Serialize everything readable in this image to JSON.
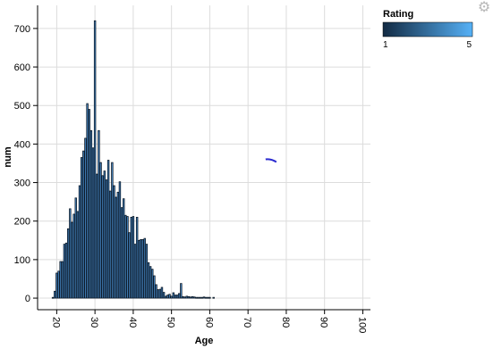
{
  "chart_data": {
    "type": "bar",
    "xlabel": "Age",
    "ylabel": "num",
    "xlim": [
      15,
      102
    ],
    "ylim": [
      -30,
      760
    ],
    "x_ticks": [
      20,
      30,
      40,
      50,
      60,
      70,
      80,
      90,
      100
    ],
    "y_ticks": [
      0,
      100,
      200,
      300,
      400,
      500,
      600,
      700
    ],
    "grid": true,
    "bar_color": "#4a8fd0",
    "bar_stroke": "#0c1826",
    "legend": {
      "title": "Rating",
      "min_label": "1",
      "max_label": "5",
      "gradient": [
        "#132b43",
        "#56b1f7"
      ],
      "placement": "top-right"
    },
    "values": [
      {
        "x": 19,
        "y": 2
      },
      {
        "x": 19.5,
        "y": 18
      },
      {
        "x": 20,
        "y": 65
      },
      {
        "x": 20.5,
        "y": 70
      },
      {
        "x": 21,
        "y": 95
      },
      {
        "x": 21.5,
        "y": 95
      },
      {
        "x": 22,
        "y": 140
      },
      {
        "x": 22.5,
        "y": 143
      },
      {
        "x": 23,
        "y": 180
      },
      {
        "x": 23.5,
        "y": 232
      },
      {
        "x": 24,
        "y": 197
      },
      {
        "x": 24.5,
        "y": 218
      },
      {
        "x": 25,
        "y": 260
      },
      {
        "x": 25.5,
        "y": 225
      },
      {
        "x": 26,
        "y": 292
      },
      {
        "x": 26.5,
        "y": 365
      },
      {
        "x": 27,
        "y": 382
      },
      {
        "x": 27.5,
        "y": 415
      },
      {
        "x": 28,
        "y": 505
      },
      {
        "x": 28.5,
        "y": 490
      },
      {
        "x": 29,
        "y": 435
      },
      {
        "x": 29.5,
        "y": 390
      },
      {
        "x": 30,
        "y": 720
      },
      {
        "x": 30.5,
        "y": 322
      },
      {
        "x": 31,
        "y": 435
      },
      {
        "x": 31.5,
        "y": 352
      },
      {
        "x": 32,
        "y": 318
      },
      {
        "x": 32.5,
        "y": 330
      },
      {
        "x": 33,
        "y": 307
      },
      {
        "x": 33.5,
        "y": 358
      },
      {
        "x": 34,
        "y": 278
      },
      {
        "x": 34.5,
        "y": 352
      },
      {
        "x": 35,
        "y": 292
      },
      {
        "x": 35.5,
        "y": 262
      },
      {
        "x": 36,
        "y": 275
      },
      {
        "x": 36.5,
        "y": 302
      },
      {
        "x": 37,
        "y": 235
      },
      {
        "x": 37.5,
        "y": 258
      },
      {
        "x": 38,
        "y": 215
      },
      {
        "x": 38.5,
        "y": 212
      },
      {
        "x": 39,
        "y": 170
      },
      {
        "x": 39.5,
        "y": 210
      },
      {
        "x": 40,
        "y": 212
      },
      {
        "x": 40.5,
        "y": 140
      },
      {
        "x": 41,
        "y": 210
      },
      {
        "x": 41.5,
        "y": 150
      },
      {
        "x": 42,
        "y": 152
      },
      {
        "x": 42.5,
        "y": 152
      },
      {
        "x": 43,
        "y": 155
      },
      {
        "x": 43.5,
        "y": 140
      },
      {
        "x": 44,
        "y": 92
      },
      {
        "x": 44.5,
        "y": 82
      },
      {
        "x": 45,
        "y": 75
      },
      {
        "x": 45.5,
        "y": 58
      },
      {
        "x": 46,
        "y": 35
      },
      {
        "x": 46.5,
        "y": 22
      },
      {
        "x": 47,
        "y": 23
      },
      {
        "x": 47.5,
        "y": 28
      },
      {
        "x": 48,
        "y": 15
      },
      {
        "x": 48.5,
        "y": 5
      },
      {
        "x": 49,
        "y": 8
      },
      {
        "x": 49.5,
        "y": 10
      },
      {
        "x": 50,
        "y": 5
      },
      {
        "x": 50.5,
        "y": 14
      },
      {
        "x": 51,
        "y": 8
      },
      {
        "x": 51.5,
        "y": 8
      },
      {
        "x": 52,
        "y": 12
      },
      {
        "x": 52.5,
        "y": 38
      },
      {
        "x": 53,
        "y": 4
      },
      {
        "x": 53.5,
        "y": 3
      },
      {
        "x": 54,
        "y": 5
      },
      {
        "x": 54.5,
        "y": 4
      },
      {
        "x": 55,
        "y": 3
      },
      {
        "x": 55.5,
        "y": 4
      },
      {
        "x": 56,
        "y": 3
      },
      {
        "x": 56.5,
        "y": 2
      },
      {
        "x": 57,
        "y": 2
      },
      {
        "x": 57.5,
        "y": 2
      },
      {
        "x": 58,
        "y": 2
      },
      {
        "x": 58.5,
        "y": 3
      },
      {
        "x": 59,
        "y": 2
      },
      {
        "x": 59.5,
        "y": 2
      },
      {
        "x": 60,
        "y": 2
      },
      {
        "x": 61,
        "y": 2
      }
    ],
    "stray_mark": {
      "x": 76,
      "y": 358
    }
  }
}
